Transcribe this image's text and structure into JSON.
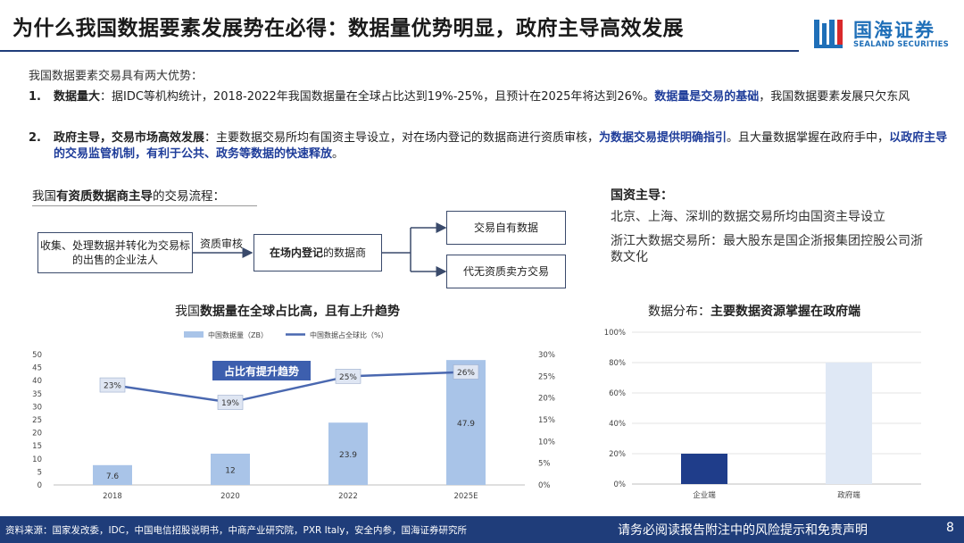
{
  "title": "为什么我国数据要素发展势在必得：数据量优势明显，政府主导高效发展",
  "logo": {
    "cn": "国海证券",
    "en": "SEALAND SECURITIES",
    "colors": [
      "#1f6fb8",
      "#d9292b"
    ]
  },
  "intro": "我国数据要素交易具有两大优势：",
  "points": [
    {
      "num": "1.",
      "lead": "数据量大",
      "body": "：据IDC等机构统计，2018-2022年我国数据量在全球占比达到19%-25%，且预计在2025年将达到26%。",
      "highlight": "数据量是交易的基础",
      "tail": "，我国数据要素发展只欠东风"
    },
    {
      "num": "2.",
      "lead": "政府主导，交易市场高效发展",
      "body": "：主要数据交易所均有国资主导设立，对在场内登记的数据商进行资质审核，",
      "highlight": "为数据交易提供明确指引",
      "mid": "。且大量数据掌握在政府手中，",
      "highlight2": "以政府主导的交易监管机制，有利于公共、政务等数据的快速释放",
      "tail": "。"
    }
  ],
  "flow": {
    "heading_pre": "我国",
    "heading_bold": "有资质数据商主导",
    "heading_post": "的交易流程：",
    "source_box": "收集、处理数据并转化为交易标的出售的企业法人",
    "review_label": "资质审核",
    "middle_box_bold": "在场内登记",
    "middle_box_post": "的数据商",
    "out_top": "交易自有数据",
    "out_bottom": "代无资质卖方交易"
  },
  "state_assets": {
    "heading": "国资主导：",
    "line1": "北京、上海、深圳的数据交易所均由国资主导设立",
    "line2": "浙江大数据交易所：最大股东是国企浙报集团控股公司浙数文化"
  },
  "chart1_title_pre": "我国",
  "chart1_title_bold": "数据量在全球占比高，且有上升趋势",
  "chart2_title_pre": "数据分布：",
  "chart2_title_bold": "主要数据资源掌握在政府端",
  "callout": "占比有提升趋势",
  "chart_data": [
    {
      "type": "bar",
      "categories": [
        "2018",
        "2020",
        "2022",
        "2025E"
      ],
      "series": [
        {
          "name": "中国数据量（ZB）",
          "type": "bar",
          "axis": "left",
          "values": [
            7.6,
            12,
            23.9,
            47.9
          ],
          "labels": [
            "7.6",
            "12",
            "23.9",
            "47.9"
          ],
          "color": "#a9c4e8"
        },
        {
          "name": "中国数据占全球比（%）",
          "type": "line",
          "axis": "right",
          "values": [
            23,
            19,
            25,
            26
          ],
          "labels": [
            "23%",
            "19%",
            "25%",
            "26%"
          ],
          "color": "#4a68b0"
        }
      ],
      "y_left": {
        "min": 0,
        "max": 50,
        "ticks": [
          "0",
          "5",
          "10",
          "15",
          "20",
          "25",
          "30",
          "35",
          "40",
          "45",
          "50"
        ]
      },
      "y_right": {
        "min": 0,
        "max": 30,
        "ticks": [
          "0%",
          "5%",
          "10%",
          "15%",
          "20%",
          "25%",
          "30%"
        ]
      },
      "legend": "top-center"
    },
    {
      "type": "bar",
      "categories": [
        "企业端",
        "政府端"
      ],
      "values": [
        20,
        80
      ],
      "colors": [
        "#1f3d8a",
        "#dfe8f5"
      ],
      "y": {
        "min": 0,
        "max": 100,
        "ticks": [
          "0%",
          "20%",
          "40%",
          "60%",
          "80%",
          "100%"
        ]
      },
      "grid": true
    }
  ],
  "footer": {
    "source": "资料来源：国家发改委，IDC，中国电信招股说明书，中商产业研究院，PXR Italy，安全内参，国海证券研究所",
    "disclaimer": "请务必阅读报告附注中的风险提示和免责声明",
    "page": "8",
    "bar_color": "#1f3d7a"
  }
}
